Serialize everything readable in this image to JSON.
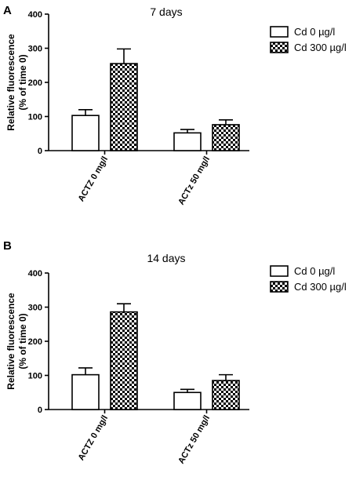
{
  "chart_data": [
    {
      "type": "bar",
      "panel": "A",
      "title": "7 days",
      "ylabel_line1": "Relative fluorescence",
      "ylabel_line2": "(% of time 0)",
      "xlabel": "",
      "ylim": [
        0,
        400
      ],
      "yticks": [
        0,
        100,
        200,
        300,
        400
      ],
      "categories": [
        "ACTZ 0 mg/l",
        "ACTz 50 mg/l"
      ],
      "series": [
        {
          "name": "Cd 0 µg/l",
          "pattern": "open",
          "values": [
            103,
            52
          ],
          "errors": [
            17,
            10
          ]
        },
        {
          "name": "Cd 300 µg/l",
          "pattern": "checkered",
          "values": [
            255,
            76
          ],
          "errors": [
            43,
            14
          ]
        }
      ],
      "legend": "top-right"
    },
    {
      "type": "bar",
      "panel": "B",
      "title": "14 days",
      "ylabel_line1": "Relative fluorescence",
      "ylabel_line2": "(% of time 0)",
      "xlabel": "",
      "ylim": [
        0,
        400
      ],
      "yticks": [
        0,
        100,
        200,
        300,
        400
      ],
      "categories": [
        "ACTZ 0 mg/l",
        "ACTz 50 mg/l"
      ],
      "series": [
        {
          "name": "Cd 0 µg/l",
          "pattern": "open",
          "values": [
            102,
            50
          ],
          "errors": [
            20,
            9
          ]
        },
        {
          "name": "Cd 300 µg/l",
          "pattern": "checkered",
          "values": [
            286,
            85
          ],
          "errors": [
            24,
            17
          ]
        }
      ],
      "legend": "top-right"
    }
  ]
}
